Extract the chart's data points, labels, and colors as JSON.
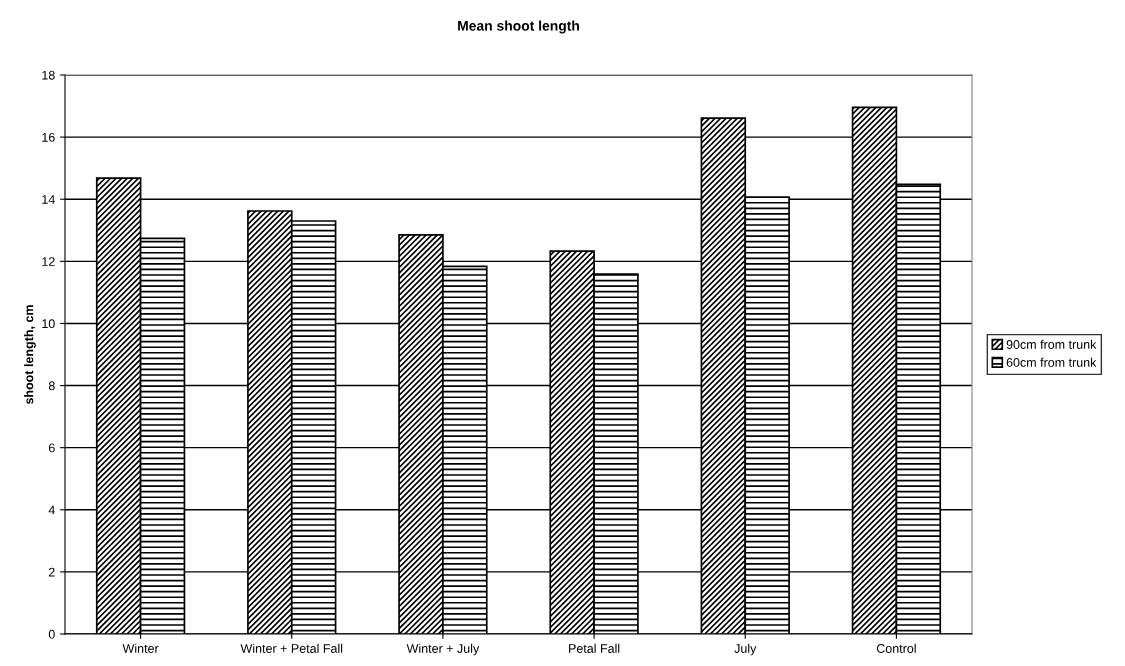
{
  "chart_data": {
    "type": "bar",
    "title": "Mean shoot length",
    "ylabel": "shoot length, cm",
    "categories": [
      "Winter",
      "Winter + Petal Fall",
      "Winter + July",
      "Petal Fall",
      "July",
      "Control"
    ],
    "series": [
      {
        "name": "90cm from trunk",
        "color": "#000000",
        "values": [
          14.68,
          13.62,
          12.85,
          12.33,
          16.61,
          16.96
        ]
      },
      {
        "name": "60cm from trunk",
        "color": "#000000",
        "values": [
          12.74,
          13.3,
          11.84,
          11.59,
          14.07,
          14.48
        ]
      }
    ],
    "ylim": [
      0,
      18
    ],
    "yticks": [
      0,
      2,
      4,
      6,
      8,
      10,
      12,
      14,
      16,
      18
    ],
    "grid": "y",
    "legend": "right"
  }
}
